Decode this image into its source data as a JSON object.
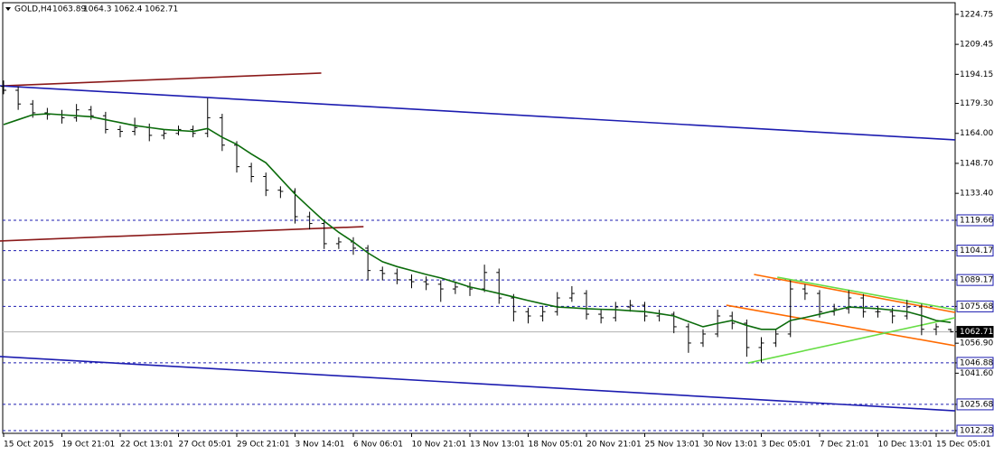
{
  "header": {
    "symbol": "GOLD,H4",
    "open": 1063.89,
    "high": 1064.3,
    "low": 1062.4,
    "close": 1062.71
  },
  "chart_data": {
    "type": "ohlc",
    "x_labels": [
      "15 Oct 2015",
      "19 Oct 21:01",
      "22 Oct 13:01",
      "27 Oct 05:01",
      "29 Oct 21:01",
      "3 Nov 14:01",
      "6 Nov 06:01",
      "10 Nov 21:01",
      "13 Nov 13:01",
      "18 Nov 05:01",
      "20 Nov 21:01",
      "25 Nov 13:01",
      "30 Nov 13:01",
      "3 Dec 05:01",
      "7 Dec 21:01",
      "10 Dec 13:01",
      "15 Dec 05:01"
    ],
    "bar_color": "#000000",
    "open": [
      1188,
      1186,
      1179,
      1174.5,
      1173.6,
      1172,
      1176,
      1173,
      1166,
      1165,
      1167,
      1163,
      1164,
      1166,
      1164,
      1172,
      1158,
      1147,
      1142,
      1135,
      1134.4,
      1121.5,
      1118,
      1107.7,
      1108.6,
      1105.4,
      1094,
      1092.5,
      1089.3,
      1088.3,
      1087,
      1084.6,
      1085.6,
      1084.6,
      1093,
      1080,
      1073,
      1070.8,
      1073,
      1080,
      1082.3,
      1071.7,
      1069.9,
      1075.4,
      1076.3,
      1070.8,
      1071.7,
      1065.3,
      1057,
      1061.6,
      1070.8,
      1067.1,
      1054.7,
      1057,
      1061.6,
      1084.6,
      1082.3,
      1073,
      1074.5,
      1080,
      1073,
      1073,
      1070.8,
      1075.4,
      1064,
      1063.89
    ],
    "high": [
      1191,
      1188,
      1181,
      1177,
      1176,
      1179,
      1178,
      1175,
      1168,
      1172,
      1169,
      1166,
      1168,
      1168,
      1182,
      1174,
      1160,
      1149,
      1144,
      1137,
      1136,
      1124,
      1120,
      1111,
      1111,
      1107,
      1096,
      1095,
      1092,
      1091,
      1089,
      1088,
      1088,
      1097,
      1095,
      1082,
      1075,
      1076,
      1083,
      1086,
      1084,
      1074,
      1078,
      1079,
      1078,
      1074,
      1073,
      1067,
      1064,
      1074,
      1073,
      1069,
      1060,
      1064,
      1089,
      1087,
      1084,
      1077,
      1084,
      1082,
      1076,
      1075,
      1079,
      1077,
      1067,
      1064.3
    ],
    "low": [
      1184,
      1176,
      1172,
      1171,
      1169,
      1170,
      1171,
      1164,
      1162,
      1163,
      1160,
      1161,
      1163,
      1162,
      1162,
      1155,
      1144,
      1139,
      1132,
      1131,
      1118,
      1115,
      1105,
      1105,
      1102,
      1089,
      1089,
      1087,
      1085,
      1084,
      1078,
      1082,
      1081,
      1083,
      1077,
      1068,
      1067,
      1068,
      1071,
      1078,
      1069,
      1067,
      1068,
      1073,
      1068,
      1068,
      1062,
      1052,
      1055,
      1060,
      1064,
      1050,
      1047,
      1055,
      1060,
      1079,
      1070,
      1071,
      1072,
      1070,
      1070,
      1067,
      1069,
      1061,
      1061,
      1062.4
    ],
    "close": [
      1186,
      1179,
      1174.5,
      1173.6,
      1172,
      1176,
      1173,
      1166,
      1165,
      1167,
      1163,
      1164,
      1166,
      1164,
      1172,
      1158,
      1147,
      1142,
      1135,
      1134.4,
      1121.5,
      1118,
      1107.7,
      1108.6,
      1105.4,
      1094,
      1092.5,
      1089.3,
      1088.3,
      1087,
      1084.6,
      1085.6,
      1084.6,
      1093,
      1080,
      1073,
      1070.8,
      1073,
      1080,
      1082.3,
      1071.7,
      1069.9,
      1075.4,
      1076.3,
      1070.8,
      1071.7,
      1065.3,
      1057,
      1061.6,
      1070.8,
      1067.1,
      1054.7,
      1057,
      1061.6,
      1084.6,
      1082.3,
      1073,
      1074.5,
      1080,
      1073,
      1073,
      1070.8,
      1075.4,
      1064,
      1065.3,
      1062.71
    ],
    "moving_average": {
      "color": "#0b6b0b",
      "values": [
        1168.5,
        1171,
        1173.5,
        1174,
        1173.5,
        1173,
        1172.5,
        1171,
        1169.5,
        1168,
        1167,
        1166,
        1165.5,
        1165,
        1166.5,
        1162,
        1158.4,
        1153.5,
        1149,
        1141,
        1133,
        1126,
        1119.2,
        1113.5,
        1108.6,
        1103,
        1098.5,
        1096,
        1094,
        1092,
        1090.2,
        1088,
        1085.6,
        1084,
        1082.3,
        1080.5,
        1078.7,
        1077,
        1075.4,
        1075,
        1074.5,
        1074.2,
        1074,
        1073.5,
        1073,
        1072,
        1070.8,
        1068,
        1065.3,
        1067,
        1068.5,
        1066,
        1064,
        1064,
        1068.5,
        1070,
        1071.7,
        1073.5,
        1075.4,
        1075,
        1074.5,
        1073.8,
        1073,
        1071,
        1068.5,
        1067.5
      ]
    },
    "trendlines": [
      {
        "color": "#8b1a1a",
        "points": [
          [
            0,
            1188.3
          ],
          [
            21.8,
            1194.8
          ]
        ]
      },
      {
        "color": "#1c1cb0",
        "points": [
          [
            -0.25,
            1188.3
          ],
          [
            65.3,
            1160.7
          ]
        ]
      },
      {
        "color": "#8b1a1a",
        "points": [
          [
            -0.25,
            1109.1
          ],
          [
            24.7,
            1116.4
          ]
        ]
      },
      {
        "color": "#1c1cb0",
        "points": [
          [
            -0.25,
            1050.1
          ],
          [
            65.3,
            1022.4
          ]
        ]
      },
      {
        "color": "#ff6a00",
        "points": [
          [
            51.5,
            1092.0
          ],
          [
            65.3,
            1072.6
          ]
        ]
      },
      {
        "color": "#ff6a00",
        "points": [
          [
            49.6,
            1076.3
          ],
          [
            65.3,
            1055.6
          ]
        ]
      },
      {
        "color": "#66dd44",
        "points": [
          [
            51.1,
            1046.8
          ],
          [
            65.3,
            1069.9
          ]
        ]
      },
      {
        "color": "#66dd44",
        "points": [
          [
            53.1,
            1090.6
          ],
          [
            65.3,
            1074.0
          ]
        ]
      }
    ],
    "levels": [
      1119.66,
      1104.17,
      1089.17,
      1075.68,
      1046.88,
      1025.68,
      1012.28
    ],
    "level_color": "#1c1cb0",
    "ylim": [
      1010.9,
      1230.7
    ],
    "yticks": [
      1224.75,
      1209.45,
      1194.15,
      {
        "value": 1179.3,
        "label": "1179.30"
      },
      {
        "value": 1164.0,
        "label": "1164.00"
      },
      {
        "value": 1148.7,
        "label": "1148.70"
      },
      {
        "value": 1133.4,
        "label": "1133.40"
      },
      1119.66,
      1104.17,
      1089.17,
      1075.68,
      1062.71,
      {
        "value": 1056.9,
        "label": "1056.90"
      },
      1046.88,
      {
        "value": 1041.6,
        "label": "1041.60"
      },
      1025.68,
      1012.28
    ]
  }
}
